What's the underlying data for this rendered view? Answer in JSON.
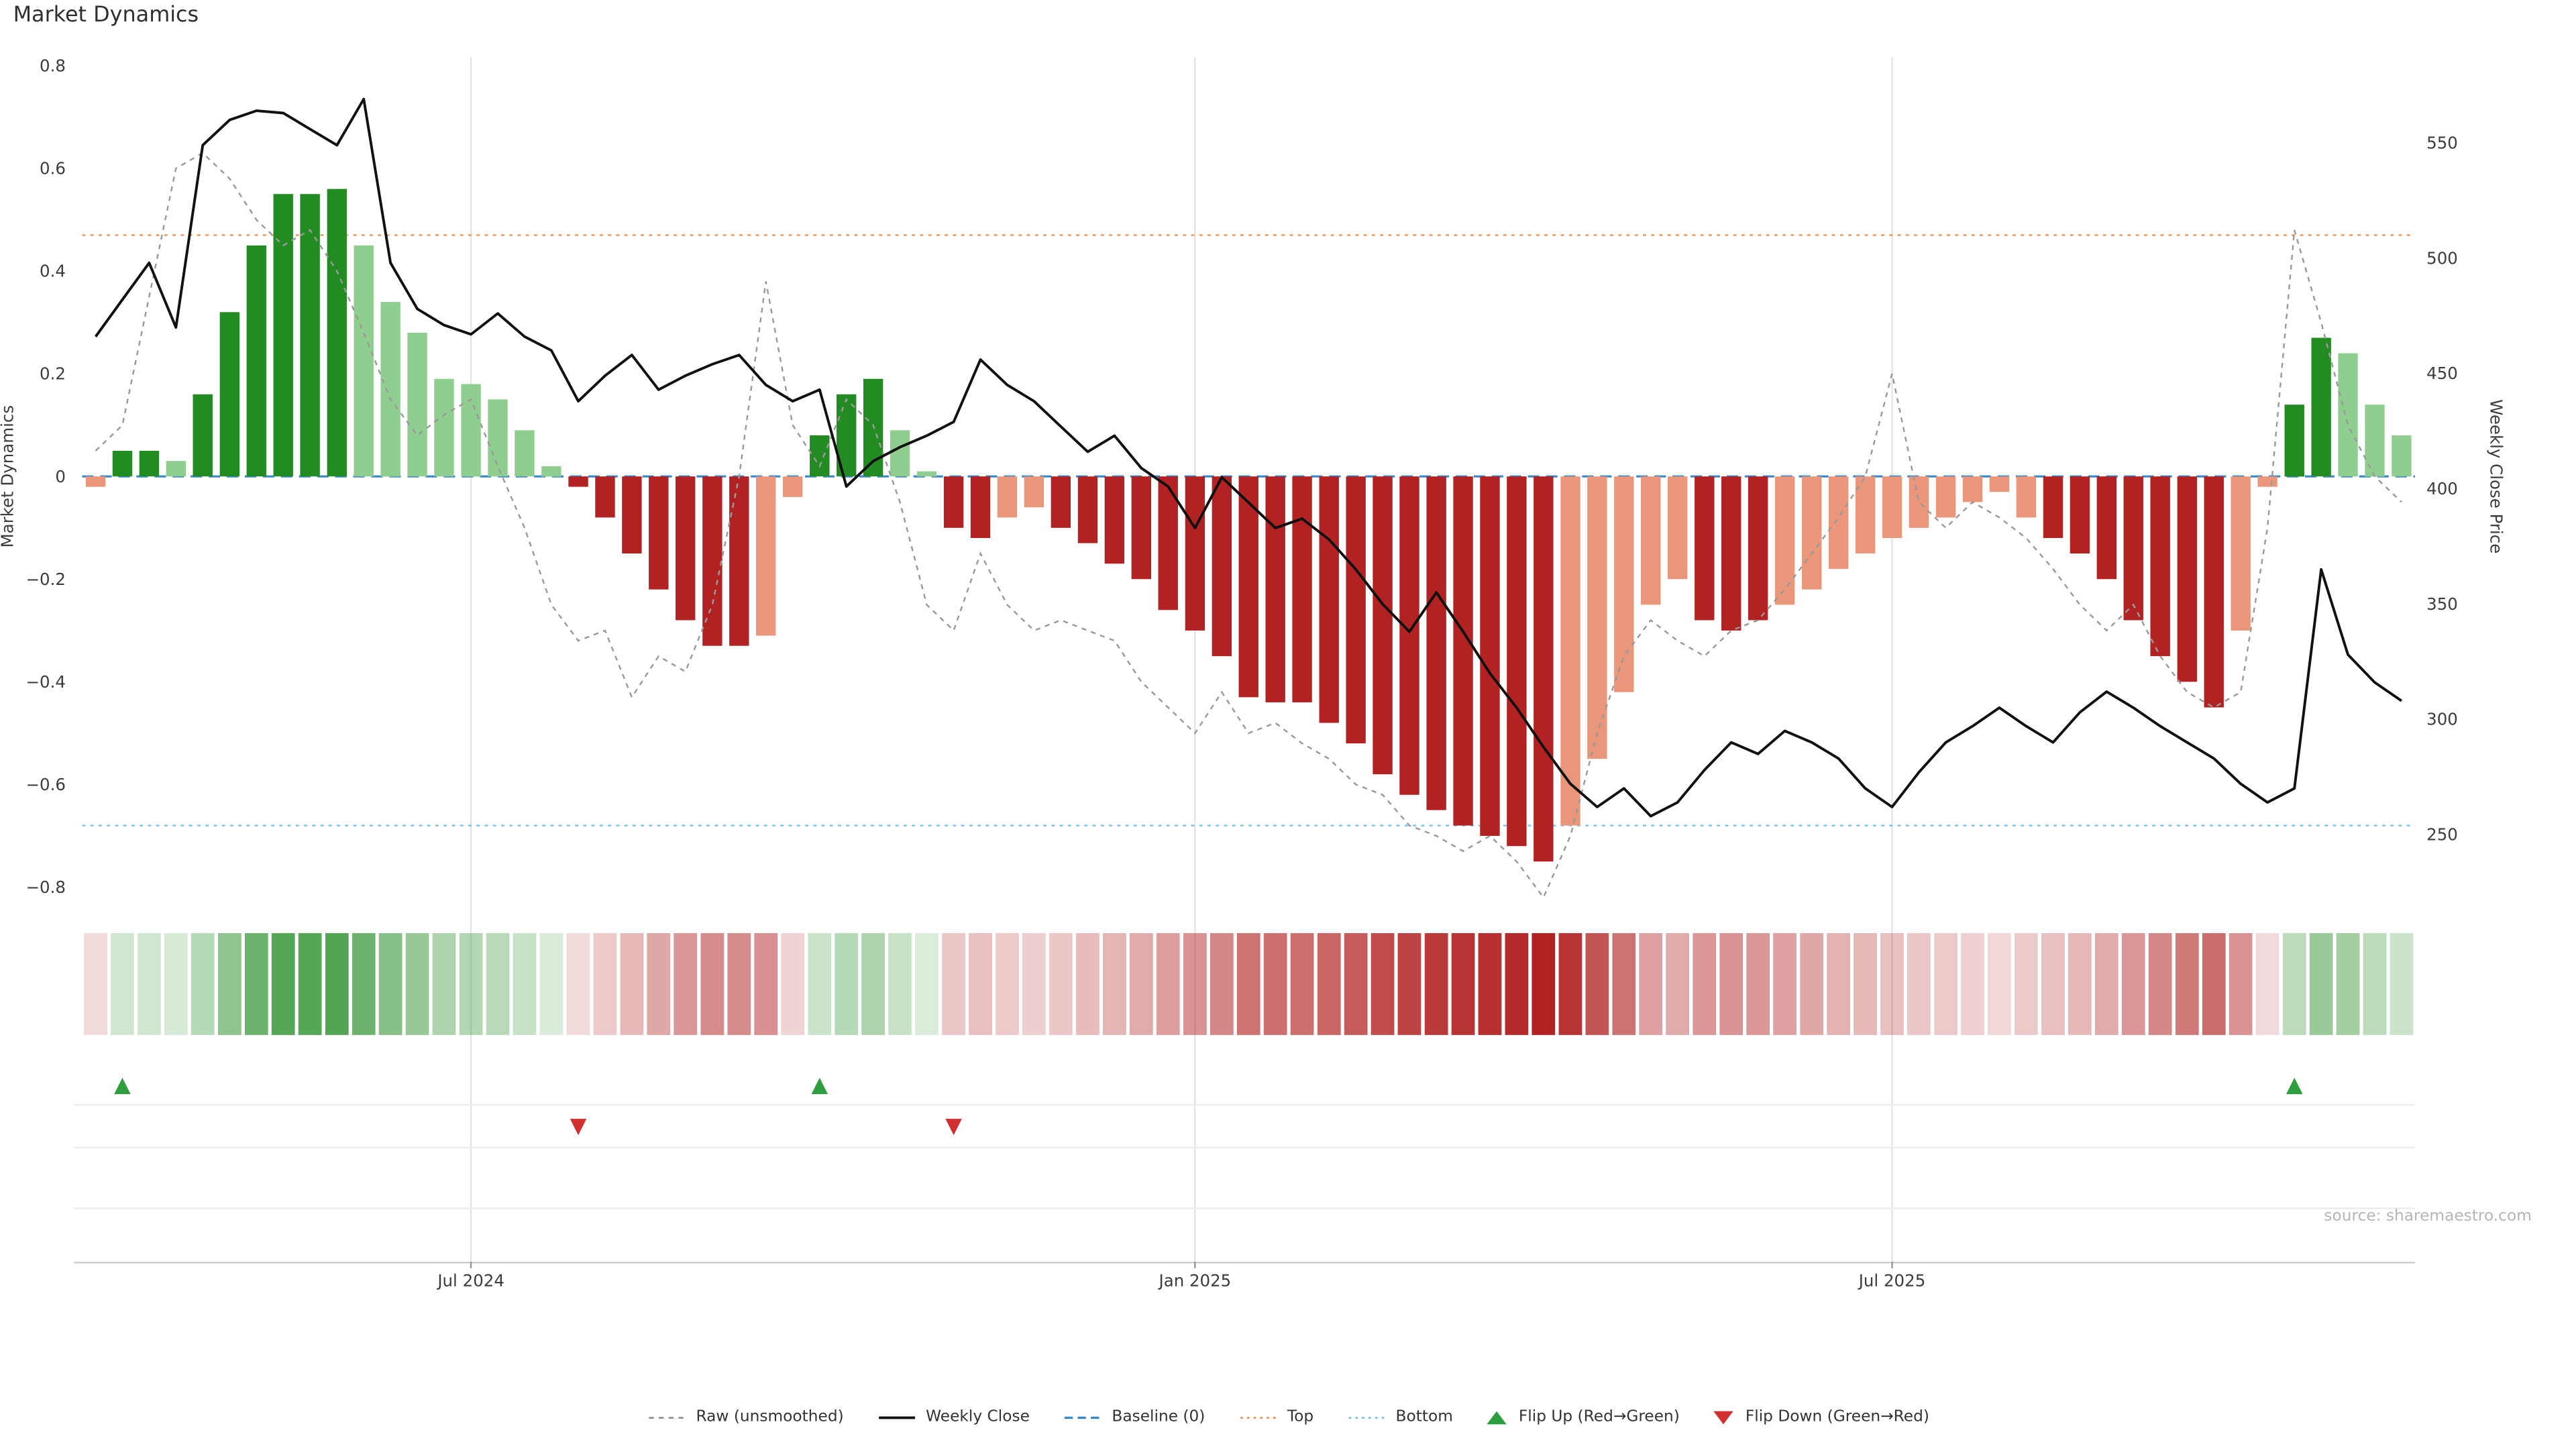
{
  "title": "Market Dynamics",
  "source_note": "source: sharemaestro.com",
  "colors": {
    "bar_green_dark": "#228b22",
    "bar_green_light": "#8fce8f",
    "bar_red_dark": "#b22222",
    "bar_red_light": "#e9967a",
    "weekly_close": "#111111",
    "raw": "#9a9a9a",
    "baseline": "#3a87c8",
    "top": "#f2975a",
    "bottom": "#7cc7e8",
    "flip_up": "#2e9e3e",
    "flip_down": "#d03030",
    "grid": "#e4e4e4",
    "text": "#3c3c3c",
    "muted": "#b5b5b5"
  },
  "legend": [
    {
      "id": "raw",
      "label": "Raw (unsmoothed)",
      "symbol": "line-dashed-gray"
    },
    {
      "id": "weekly-close",
      "label": "Weekly Close",
      "symbol": "line-solid-black"
    },
    {
      "id": "baseline",
      "label": "Baseline (0)",
      "symbol": "line-dashed-blue"
    },
    {
      "id": "top",
      "label": "Top",
      "symbol": "line-dotted-orange"
    },
    {
      "id": "bottom",
      "label": "Bottom",
      "symbol": "line-dotted-lightblue"
    },
    {
      "id": "flip-up",
      "label": "Flip Up (Red→Green)",
      "symbol": "triangle-up-green"
    },
    {
      "id": "flip-down",
      "label": "Flip Down (Green→Red)",
      "symbol": "triangle-down-red"
    }
  ],
  "chart_data": {
    "type": "bar",
    "title": "Market Dynamics",
    "baseline": 0,
    "top_threshold": 0.47,
    "bottom_threshold": -0.68,
    "left_axis": {
      "label": "Market Dynamics",
      "range": [
        -0.82,
        0.82
      ],
      "ticks": [
        {
          "v": 0.8,
          "label": "0.8"
        },
        {
          "v": 0.6,
          "label": "0.6"
        },
        {
          "v": 0.4,
          "label": "0.4"
        },
        {
          "v": 0.2,
          "label": "0.2"
        },
        {
          "v": 0.0,
          "label": "0"
        },
        {
          "v": -0.2,
          "label": "−0.2"
        },
        {
          "v": -0.4,
          "label": "−0.4"
        },
        {
          "v": -0.6,
          "label": "−0.6"
        },
        {
          "v": -0.8,
          "label": "−0.8"
        }
      ]
    },
    "right_axis": {
      "label": "Weekly Close Price",
      "range": [
        224,
        587
      ],
      "ticks": [
        {
          "v": 550,
          "label": "550"
        },
        {
          "v": 500,
          "label": "500"
        },
        {
          "v": 450,
          "label": "450"
        },
        {
          "v": 400,
          "label": "400"
        },
        {
          "v": 350,
          "label": "350"
        },
        {
          "v": 300,
          "label": "300"
        },
        {
          "v": 250,
          "label": "250"
        }
      ]
    },
    "x_ticks": [
      {
        "i": 14,
        "label": "Jul 2024"
      },
      {
        "i": 41,
        "label": "Jan 2025"
      },
      {
        "i": 67,
        "label": "Jul 2025"
      }
    ],
    "series": [
      {
        "name": "Market Dynamics (smoothed)",
        "type": "bar",
        "axis": "left",
        "values": [
          -0.02,
          0.05,
          0.05,
          0.03,
          0.16,
          0.32,
          0.45,
          0.55,
          0.55,
          0.56,
          0.45,
          0.34,
          0.28,
          0.19,
          0.18,
          0.15,
          0.09,
          0.02,
          -0.02,
          -0.08,
          -0.15,
          -0.22,
          -0.28,
          -0.33,
          -0.33,
          -0.31,
          -0.04,
          0.08,
          0.16,
          0.19,
          0.09,
          0.01,
          -0.1,
          -0.12,
          -0.08,
          -0.06,
          -0.1,
          -0.13,
          -0.17,
          -0.2,
          -0.26,
          -0.3,
          -0.35,
          -0.43,
          -0.44,
          -0.44,
          -0.48,
          -0.52,
          -0.58,
          -0.62,
          -0.65,
          -0.68,
          -0.7,
          -0.72,
          -0.75,
          -0.68,
          -0.55,
          -0.42,
          -0.25,
          -0.2,
          -0.28,
          -0.3,
          -0.28,
          -0.25,
          -0.22,
          -0.18,
          -0.15,
          -0.12,
          -0.1,
          -0.08,
          -0.05,
          -0.03,
          -0.08,
          -0.12,
          -0.15,
          -0.2,
          -0.28,
          -0.35,
          -0.4,
          -0.45,
          -0.3,
          -0.02,
          0.14,
          0.27,
          0.24,
          0.14,
          0.08
        ],
        "shade": [
          "l",
          "d",
          "d",
          "l",
          "d",
          "d",
          "d",
          "d",
          "d",
          "d",
          "l",
          "l",
          "l",
          "l",
          "l",
          "l",
          "l",
          "l",
          "d",
          "d",
          "d",
          "d",
          "d",
          "d",
          "d",
          "l",
          "l",
          "d",
          "d",
          "d",
          "l",
          "l",
          "d",
          "d",
          "l",
          "l",
          "d",
          "d",
          "d",
          "d",
          "d",
          "d",
          "d",
          "d",
          "d",
          "d",
          "d",
          "d",
          "d",
          "d",
          "d",
          "d",
          "d",
          "d",
          "d",
          "l",
          "l",
          "l",
          "l",
          "l",
          "d",
          "d",
          "d",
          "l",
          "l",
          "l",
          "l",
          "l",
          "l",
          "l",
          "l",
          "l",
          "l",
          "d",
          "d",
          "d",
          "d",
          "d",
          "d",
          "d",
          "l",
          "l",
          "d",
          "d",
          "l",
          "l",
          "l"
        ]
      },
      {
        "name": "Raw (unsmoothed)",
        "type": "line",
        "axis": "left",
        "values": [
          0.05,
          0.1,
          0.35,
          0.6,
          0.63,
          0.58,
          0.5,
          0.45,
          0.48,
          0.4,
          0.28,
          0.15,
          0.08,
          0.12,
          0.15,
          0.02,
          -0.1,
          -0.25,
          -0.32,
          -0.3,
          -0.43,
          -0.35,
          -0.38,
          -0.25,
          0.0,
          0.38,
          0.1,
          0.02,
          0.15,
          0.1,
          -0.05,
          -0.25,
          -0.3,
          -0.15,
          -0.25,
          -0.3,
          -0.28,
          -0.3,
          -0.32,
          -0.4,
          -0.45,
          -0.5,
          -0.42,
          -0.5,
          -0.48,
          -0.52,
          -0.55,
          -0.6,
          -0.62,
          -0.68,
          -0.7,
          -0.73,
          -0.7,
          -0.75,
          -0.82,
          -0.7,
          -0.5,
          -0.35,
          -0.28,
          -0.32,
          -0.35,
          -0.3,
          -0.28,
          -0.22,
          -0.15,
          -0.08,
          0.0,
          0.2,
          -0.05,
          -0.1,
          -0.05,
          -0.08,
          -0.12,
          -0.18,
          -0.25,
          -0.3,
          -0.25,
          -0.35,
          -0.42,
          -0.45,
          -0.42,
          -0.1,
          0.48,
          0.3,
          0.1,
          0.0,
          -0.05
        ]
      },
      {
        "name": "Weekly Close",
        "type": "line",
        "axis": "right",
        "values": [
          466,
          482,
          498,
          470,
          549,
          560,
          564,
          563,
          556,
          549,
          569,
          498,
          478,
          471,
          467,
          476,
          466,
          460,
          438,
          449,
          458,
          443,
          449,
          454,
          458,
          445,
          438,
          443,
          401,
          412,
          418,
          423,
          429,
          456,
          445,
          438,
          427,
          416,
          423,
          409,
          401,
          383,
          405,
          394,
          383,
          387,
          378,
          365,
          350,
          338,
          355,
          338,
          320,
          305,
          288,
          272,
          262,
          270,
          258,
          264,
          278,
          290,
          285,
          295,
          290,
          283,
          270,
          262,
          277,
          290,
          297,
          305,
          297,
          290,
          303,
          312,
          305,
          297,
          290,
          283,
          272,
          264,
          270,
          365,
          328,
          316,
          308
        ]
      }
    ],
    "heatmap_from_bar_values": true,
    "flip_up_indices": [
      1,
      27,
      82
    ],
    "flip_down_indices": [
      18,
      32
    ]
  }
}
